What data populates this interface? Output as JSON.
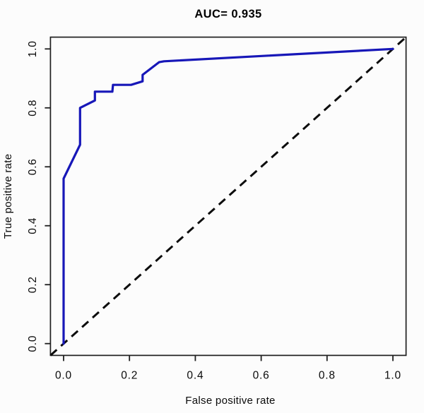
{
  "chart_data": {
    "type": "line",
    "title": "AUC= 0.935",
    "auc": 0.935,
    "xlabel": "False positive rate",
    "ylabel": "True positive rate",
    "xlim": [
      0,
      1
    ],
    "ylim": [
      0,
      1
    ],
    "axis_padding_fraction": 0.04,
    "grid": false,
    "legend": false,
    "x_ticks": [
      0.0,
      0.2,
      0.4,
      0.6,
      0.8,
      1.0
    ],
    "y_ticks": [
      0.0,
      0.2,
      0.4,
      0.6,
      0.8,
      1.0
    ],
    "x_tick_labels": [
      "0.0",
      "0.2",
      "0.4",
      "0.6",
      "0.8",
      "1.0"
    ],
    "y_tick_labels": [
      "0.0",
      "0.2",
      "0.4",
      "0.6",
      "0.8",
      "1.0"
    ],
    "series": [
      {
        "name": "roc-curve",
        "color": "#1717b8",
        "style": "solid",
        "line_width": 3.2,
        "points": [
          [
            0.0,
            0.0
          ],
          [
            0.0,
            0.56
          ],
          [
            0.05,
            0.675
          ],
          [
            0.05,
            0.8
          ],
          [
            0.095,
            0.825
          ],
          [
            0.095,
            0.855
          ],
          [
            0.148,
            0.855
          ],
          [
            0.15,
            0.878
          ],
          [
            0.205,
            0.878
          ],
          [
            0.24,
            0.89
          ],
          [
            0.24,
            0.912
          ],
          [
            0.29,
            0.955
          ],
          [
            0.305,
            0.958
          ],
          [
            1.0,
            1.0
          ]
        ]
      },
      {
        "name": "chance-diagonal",
        "color": "#0d0d0d",
        "style": "dashed",
        "line_width": 3,
        "extends_to_plot_corners": true,
        "points": [
          [
            0.0,
            0.0
          ],
          [
            1.0,
            1.0
          ]
        ]
      }
    ],
    "colors": {
      "frame": "#1f1f1f",
      "background": "#fcfcfc",
      "text": "#000000"
    }
  }
}
